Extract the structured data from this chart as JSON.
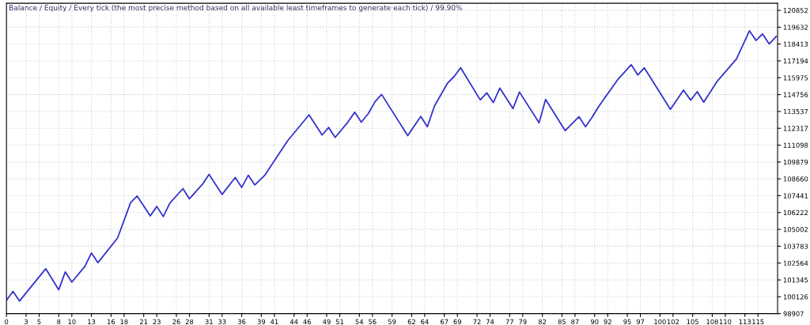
{
  "chart_data": {
    "type": "line",
    "title": "Balance / Equity / Every tick (the most precise method based on all available least timeframes to generate each tick) / 99.90%",
    "series": [
      {
        "color": "#3333cc",
        "x": [
          0,
          1,
          2,
          6,
          8,
          9,
          10,
          12,
          13,
          14,
          17,
          19,
          20,
          22,
          23,
          24,
          25,
          27,
          28,
          30,
          31,
          33,
          35,
          36,
          37,
          38,
          39.5,
          43,
          46.3,
          48.3,
          49.3,
          50.3,
          52.2,
          53.3,
          54.3,
          55.4,
          56.4,
          57.4,
          61.4,
          63.4,
          64.4,
          65.5,
          67.5,
          68.5,
          69.5,
          72.5,
          73.5,
          74.5,
          75.5,
          77.5,
          78.5,
          81.5,
          82.5,
          85.5,
          87.6,
          88.6,
          89.6,
          90.6,
          93.6,
          95.6,
          96.6,
          97.6,
          101.6,
          103.6,
          104.7,
          105.7,
          106.7,
          108.7,
          111.7,
          113.7,
          114.7,
          115.7,
          116.7,
          117.8
        ],
        "values": [
          99876,
          100520,
          99819,
          102156,
          100634,
          101928,
          101187,
          102327,
          103296,
          102595,
          104379,
          106944,
          107417,
          105975,
          106659,
          105935,
          106904,
          107953,
          107212,
          108272,
          108979,
          107531,
          108751,
          108044,
          108922,
          108216,
          108900,
          111400,
          113288,
          111829,
          112376,
          111658,
          112741,
          113482,
          112758,
          113403,
          114240,
          114770,
          111789,
          113174,
          112433,
          113937,
          115590,
          116064,
          116691,
          114371,
          114884,
          114183,
          115226,
          113744,
          114941,
          112718,
          114411,
          112148,
          113157,
          112433,
          113100,
          113881,
          115876,
          116919,
          116178,
          116691,
          113687,
          115077,
          114354,
          114963,
          114200,
          115682,
          117335,
          119370,
          118669,
          119142,
          118418,
          118971
        ]
      }
    ],
    "xlim": [
      0,
      118
    ],
    "ylim": [
      98907,
      121365
    ],
    "xticks": [
      0,
      3,
      5,
      8,
      10,
      13,
      16,
      18,
      21,
      23,
      26,
      28,
      31,
      33,
      36,
      39,
      41,
      44,
      46,
      49,
      51,
      54,
      56,
      59,
      62,
      64,
      67,
      69,
      72,
      74,
      77,
      79,
      82,
      85,
      87,
      90,
      92,
      95,
      97,
      100,
      102,
      105,
      108,
      110,
      113,
      115
    ],
    "yticks": [
      98907,
      100126,
      101345,
      102564,
      103783,
      105002,
      106222,
      107441,
      108660,
      109879,
      111098,
      112317,
      113537,
      114756,
      115975,
      117194,
      118413,
      119632,
      120852
    ],
    "grid": true,
    "marker": "none",
    "line_style": "solid"
  }
}
